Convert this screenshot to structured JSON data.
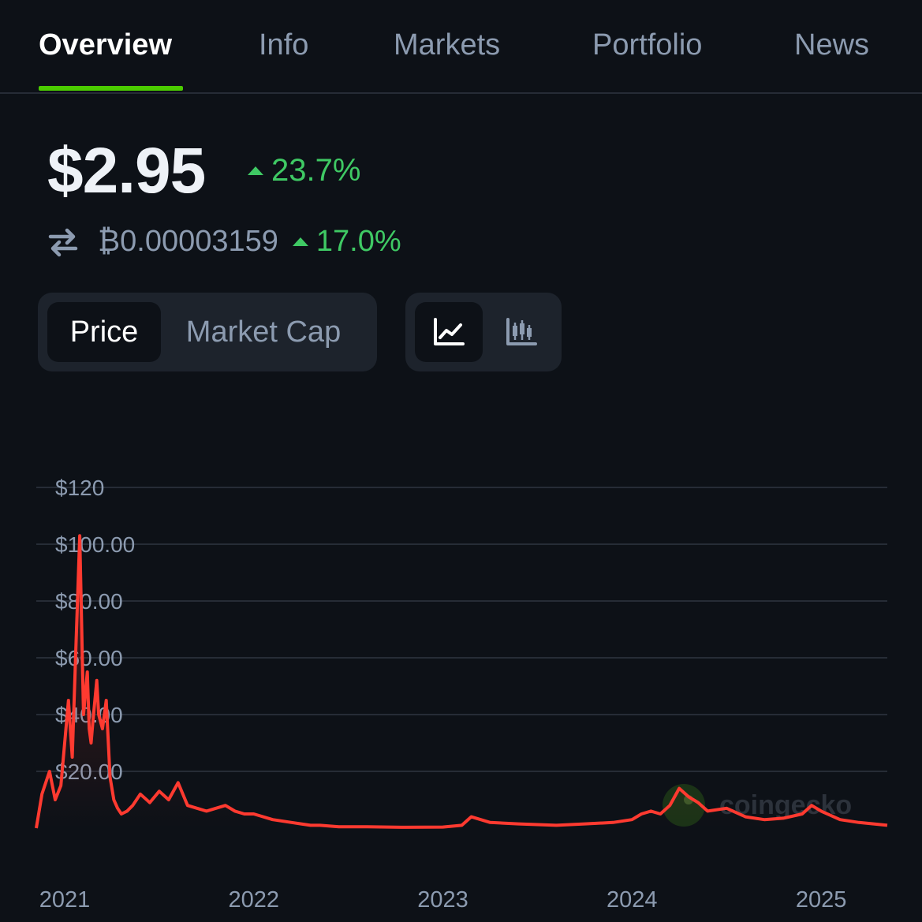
{
  "tabs": [
    {
      "label": "Overview",
      "active": true
    },
    {
      "label": "Info"
    },
    {
      "label": "Markets"
    },
    {
      "label": "Portfolio"
    },
    {
      "label": "News"
    }
  ],
  "price": {
    "value": "$2.95",
    "change_24h": "23.7%",
    "btc_value": "₿0.00003159",
    "btc_change": "17.0%"
  },
  "toggles": {
    "metric": [
      "Price",
      "Market Cap"
    ],
    "metric_selected": "Price",
    "chart_type_selected": "line",
    "chart_type_icons": [
      "line-chart-icon",
      "candlestick-chart-icon"
    ]
  },
  "watermark": "coingecko",
  "colors": {
    "background": "#0d1117",
    "accent": "#4bcc00",
    "positive": "#3fc964",
    "line": "#ff3a30"
  },
  "chart_data": {
    "type": "line",
    "y_tick_labels": [
      "$120",
      "$100.00",
      "$80.00",
      "$60.00",
      "$40.00",
      "$20.00"
    ],
    "y_ticks": [
      120,
      100,
      80,
      60,
      40,
      20
    ],
    "ylim": [
      0,
      120
    ],
    "x_tick_labels": [
      "2021",
      "2022",
      "2023",
      "2024",
      "2025"
    ],
    "xlim": [
      2020.85,
      2025.35
    ],
    "grid": true,
    "series": [
      {
        "x": [
          2020.85,
          2020.88,
          2020.92,
          2020.95,
          2020.98,
          2021.0,
          2021.02,
          2021.04,
          2021.06,
          2021.08,
          2021.1,
          2021.12,
          2021.13,
          2021.14,
          2021.15,
          2021.17,
          2021.18,
          2021.2,
          2021.22,
          2021.24,
          2021.26,
          2021.28,
          2021.3,
          2021.33,
          2021.36,
          2021.4,
          2021.45,
          2021.5,
          2021.55,
          2021.6,
          2021.65,
          2021.7,
          2021.75,
          2021.8,
          2021.85,
          2021.9,
          2021.95,
          2022.0,
          2022.1,
          2022.2,
          2022.25,
          2022.3,
          2022.35,
          2022.45,
          2022.6,
          2022.8,
          2023.0,
          2023.1,
          2023.15,
          2023.25,
          2023.4,
          2023.6,
          2023.75,
          2023.9,
          2024.0,
          2024.05,
          2024.1,
          2024.15,
          2024.2,
          2024.25,
          2024.3,
          2024.35,
          2024.4,
          2024.5,
          2024.6,
          2024.7,
          2024.8,
          2024.9,
          2024.95,
          2025.0,
          2025.1,
          2025.2,
          2025.35
        ],
        "y": [
          0,
          12,
          20,
          10,
          15,
          30,
          45,
          25,
          65,
          103,
          40,
          55,
          35,
          30,
          38,
          52,
          40,
          35,
          45,
          18,
          10,
          7,
          5,
          6,
          8,
          12,
          9,
          13,
          10,
          16,
          8,
          7,
          6,
          7,
          8,
          6,
          5,
          5,
          3,
          2,
          1.5,
          1,
          1,
          0.5,
          0.5,
          0.3,
          0.4,
          1,
          4,
          2,
          1.5,
          1,
          1.5,
          2,
          3,
          5,
          6,
          5,
          8,
          14,
          11,
          9,
          6,
          7,
          4,
          3,
          3.5,
          5,
          8,
          6,
          3,
          2,
          1
        ]
      }
    ]
  }
}
